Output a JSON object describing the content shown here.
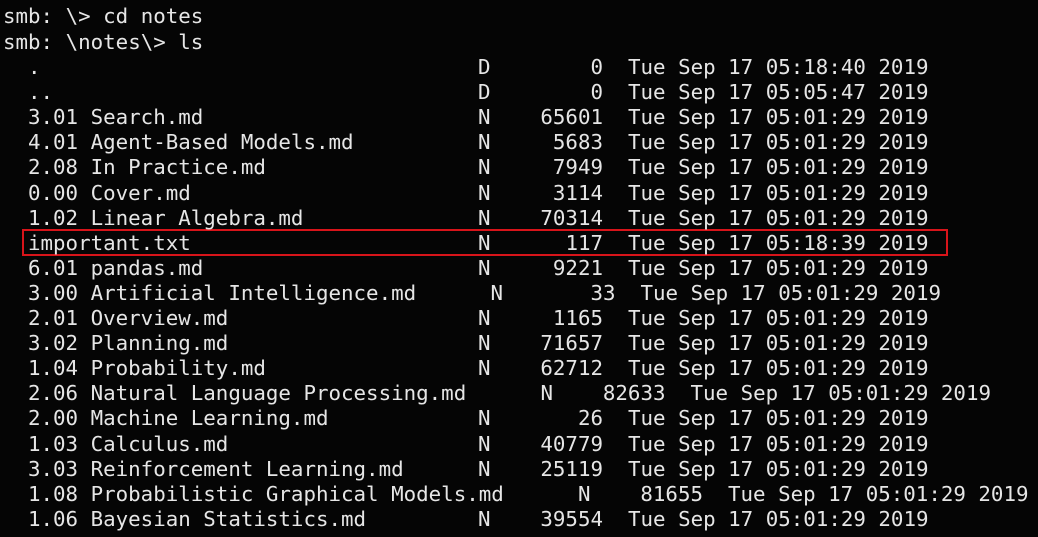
{
  "prompts": [
    "smb: \\> cd notes",
    "smb: \\notes\\> ls"
  ],
  "listing": [
    {
      "name": ".",
      "attr": "D",
      "size": 0,
      "date": "Tue Sep 17 05:18:40 2019"
    },
    {
      "name": "..",
      "attr": "D",
      "size": 0,
      "date": "Tue Sep 17 05:05:47 2019"
    },
    {
      "name": "3.01 Search.md",
      "attr": "N",
      "size": 65601,
      "date": "Tue Sep 17 05:01:29 2019"
    },
    {
      "name": "4.01 Agent-Based Models.md",
      "attr": "N",
      "size": 5683,
      "date": "Tue Sep 17 05:01:29 2019"
    },
    {
      "name": "2.08 In Practice.md",
      "attr": "N",
      "size": 7949,
      "date": "Tue Sep 17 05:01:29 2019"
    },
    {
      "name": "0.00 Cover.md",
      "attr": "N",
      "size": 3114,
      "date": "Tue Sep 17 05:01:29 2019"
    },
    {
      "name": "1.02 Linear Algebra.md",
      "attr": "N",
      "size": 70314,
      "date": "Tue Sep 17 05:01:29 2019"
    },
    {
      "name": "important.txt",
      "attr": "N",
      "size": 117,
      "date": "Tue Sep 17 05:18:39 2019"
    },
    {
      "name": "6.01 pandas.md",
      "attr": "N",
      "size": 9221,
      "date": "Tue Sep 17 05:01:29 2019"
    },
    {
      "name": "3.00 Artificial Intelligence.md",
      "attr": "N",
      "size": 33,
      "date": "Tue Sep 17 05:01:29 2019"
    },
    {
      "name": "2.01 Overview.md",
      "attr": "N",
      "size": 1165,
      "date": "Tue Sep 17 05:01:29 2019"
    },
    {
      "name": "3.02 Planning.md",
      "attr": "N",
      "size": 71657,
      "date": "Tue Sep 17 05:01:29 2019"
    },
    {
      "name": "1.04 Probability.md",
      "attr": "N",
      "size": 62712,
      "date": "Tue Sep 17 05:01:29 2019"
    },
    {
      "name": "2.06 Natural Language Processing.md",
      "attr": "N",
      "size": 82633,
      "date": "Tue Sep 17 05:01:29 2019"
    },
    {
      "name": "2.00 Machine Learning.md",
      "attr": "N",
      "size": 26,
      "date": "Tue Sep 17 05:01:29 2019"
    },
    {
      "name": "1.03 Calculus.md",
      "attr": "N",
      "size": 40779,
      "date": "Tue Sep 17 05:01:29 2019"
    },
    {
      "name": "3.03 Reinforcement Learning.md",
      "attr": "N",
      "size": 25119,
      "date": "Tue Sep 17 05:01:29 2019"
    },
    {
      "name": "1.08 Probabilistic Graphical Models.md",
      "attr": "N",
      "size": 81655,
      "date": "Tue Sep 17 05:01:29 2019"
    },
    {
      "name": "1.06 Bayesian Statistics.md",
      "attr": "N",
      "size": 39554,
      "date": "Tue Sep 17 05:01:29 2019"
    }
  ]
}
